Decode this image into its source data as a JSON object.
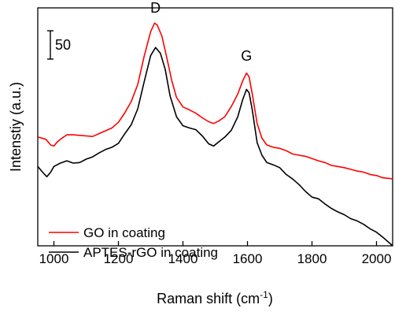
{
  "chart_data": {
    "type": "line",
    "title": "",
    "xlabel": "Raman shift (cm",
    "xlabel_sup": "-1",
    "xlabel_suffix": ")",
    "ylabel": "Intenstiy (a.u.)",
    "xlim": [
      950,
      2050
    ],
    "ylim": [
      0,
      420
    ],
    "x_ticks": [
      1000,
      1200,
      1400,
      1600,
      1800,
      2000
    ],
    "y_ticks_shown": false,
    "scale_bar": {
      "label": "50",
      "value": 50
    },
    "annotations": [
      {
        "text": "D",
        "x": 1315,
        "y": 412
      },
      {
        "text": "G",
        "x": 1597,
        "y": 327
      }
    ],
    "legend": "bottom-left",
    "series": [
      {
        "name": "GO in coating",
        "color": "#ff0000",
        "points": [
          [
            950,
            192
          ],
          [
            975,
            188
          ],
          [
            990,
            178
          ],
          [
            1000,
            176
          ],
          [
            1010,
            183
          ],
          [
            1020,
            188
          ],
          [
            1040,
            196
          ],
          [
            1060,
            196
          ],
          [
            1080,
            195
          ],
          [
            1100,
            194
          ],
          [
            1120,
            193
          ],
          [
            1140,
            198
          ],
          [
            1160,
            203
          ],
          [
            1180,
            208
          ],
          [
            1200,
            218
          ],
          [
            1220,
            235
          ],
          [
            1240,
            255
          ],
          [
            1260,
            285
          ],
          [
            1280,
            335
          ],
          [
            1300,
            378
          ],
          [
            1312,
            393
          ],
          [
            1320,
            390
          ],
          [
            1335,
            370
          ],
          [
            1350,
            332
          ],
          [
            1365,
            292
          ],
          [
            1380,
            262
          ],
          [
            1400,
            245
          ],
          [
            1420,
            240
          ],
          [
            1440,
            234
          ],
          [
            1460,
            226
          ],
          [
            1480,
            219
          ],
          [
            1495,
            216
          ],
          [
            1510,
            220
          ],
          [
            1530,
            228
          ],
          [
            1550,
            246
          ],
          [
            1570,
            268
          ],
          [
            1585,
            291
          ],
          [
            1597,
            305
          ],
          [
            1605,
            298
          ],
          [
            1615,
            268
          ],
          [
            1630,
            216
          ],
          [
            1645,
            190
          ],
          [
            1660,
            178
          ],
          [
            1680,
            174
          ],
          [
            1700,
            172
          ],
          [
            1720,
            168
          ],
          [
            1740,
            162
          ],
          [
            1760,
            160
          ],
          [
            1780,
            158
          ],
          [
            1800,
            154
          ],
          [
            1820,
            150
          ],
          [
            1840,
            147
          ],
          [
            1860,
            142
          ],
          [
            1880,
            140
          ],
          [
            1900,
            138
          ],
          [
            1920,
            135
          ],
          [
            1940,
            132
          ],
          [
            1960,
            130
          ],
          [
            1980,
            126
          ],
          [
            2000,
            124
          ],
          [
            2020,
            120
          ],
          [
            2040,
            119
          ],
          [
            2050,
            118
          ]
        ]
      },
      {
        "name": "APTES-rGO in coating",
        "color": "#000000",
        "points": [
          [
            950,
            140
          ],
          [
            965,
            130
          ],
          [
            978,
            122
          ],
          [
            990,
            130
          ],
          [
            1000,
            140
          ],
          [
            1020,
            146
          ],
          [
            1040,
            150
          ],
          [
            1060,
            146
          ],
          [
            1080,
            147
          ],
          [
            1100,
            153
          ],
          [
            1120,
            157
          ],
          [
            1140,
            164
          ],
          [
            1160,
            170
          ],
          [
            1180,
            174
          ],
          [
            1200,
            181
          ],
          [
            1220,
            198
          ],
          [
            1240,
            214
          ],
          [
            1260,
            242
          ],
          [
            1280,
            290
          ],
          [
            1300,
            336
          ],
          [
            1315,
            350
          ],
          [
            1330,
            340
          ],
          [
            1345,
            312
          ],
          [
            1360,
            265
          ],
          [
            1380,
            228
          ],
          [
            1400,
            212
          ],
          [
            1420,
            208
          ],
          [
            1440,
            205
          ],
          [
            1460,
            194
          ],
          [
            1480,
            180
          ],
          [
            1495,
            176
          ],
          [
            1510,
            183
          ],
          [
            1530,
            192
          ],
          [
            1550,
            204
          ],
          [
            1570,
            228
          ],
          [
            1585,
            258
          ],
          [
            1597,
            276
          ],
          [
            1605,
            270
          ],
          [
            1615,
            240
          ],
          [
            1630,
            182
          ],
          [
            1645,
            160
          ],
          [
            1660,
            147
          ],
          [
            1680,
            143
          ],
          [
            1700,
            138
          ],
          [
            1720,
            126
          ],
          [
            1740,
            118
          ],
          [
            1760,
            108
          ],
          [
            1780,
            96
          ],
          [
            1800,
            86
          ],
          [
            1820,
            83
          ],
          [
            1840,
            74
          ],
          [
            1860,
            66
          ],
          [
            1880,
            60
          ],
          [
            1900,
            55
          ],
          [
            1920,
            48
          ],
          [
            1940,
            44
          ],
          [
            1960,
            38
          ],
          [
            1980,
            30
          ],
          [
            2000,
            24
          ],
          [
            2020,
            15
          ],
          [
            2040,
            5
          ],
          [
            2050,
            0
          ]
        ]
      }
    ]
  }
}
